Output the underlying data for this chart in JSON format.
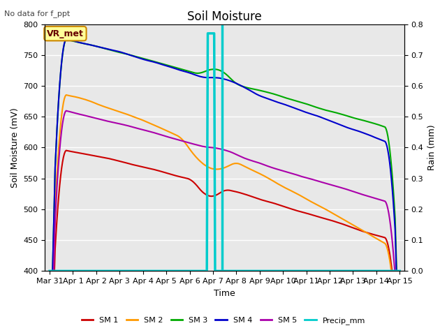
{
  "title": "Soil Moisture",
  "xlabel": "Time",
  "ylabel_left": "Soil Moisture (mV)",
  "ylabel_right": "Rain (mm)",
  "annotation_text": "No data for f_ppt",
  "vr_met_label": "VR_met",
  "ylim_left": [
    400,
    800
  ],
  "ylim_right": [
    0.0,
    0.8
  ],
  "yticks_left": [
    400,
    450,
    500,
    550,
    600,
    650,
    700,
    750,
    800
  ],
  "yticks_right": [
    0.0,
    0.1,
    0.2,
    0.3,
    0.4,
    0.5,
    0.6,
    0.7,
    0.8
  ],
  "background_color": "#e8e8e8",
  "line_colors": {
    "SM1": "#cc0000",
    "SM2": "#ff9900",
    "SM3": "#00aa00",
    "SM4": "#0000cc",
    "SM5": "#aa00aa",
    "Precip": "#00cccc"
  },
  "legend_labels": [
    "SM 1",
    "SM 2",
    "SM 3",
    "SM 4",
    "SM 5",
    "Precip_mm"
  ],
  "vr_met_box_color": "#ffff99",
  "vr_met_border_color": "#cc8800",
  "vr_met_text_color": "#660000",
  "precip_event_day": 7.4
}
